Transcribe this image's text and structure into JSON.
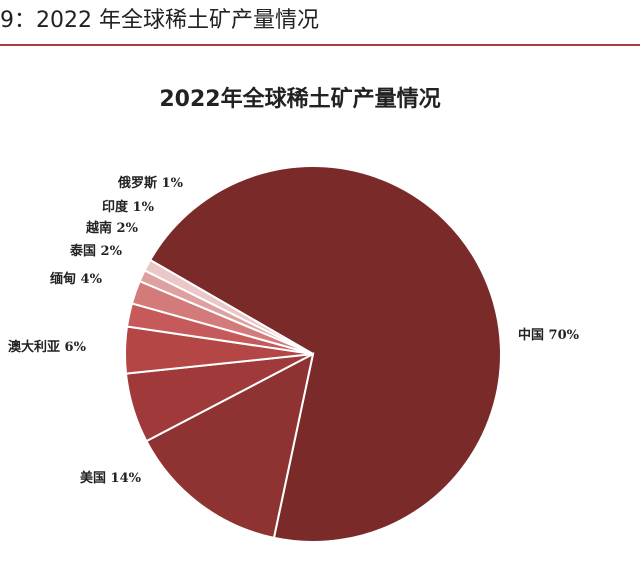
{
  "figure": {
    "caption": "9：2022 年全球稀土矿产量情况",
    "accent_color": "#b23a3a"
  },
  "chart_data": {
    "type": "pie",
    "title": "2022年全球稀土矿产量情况",
    "categories": [
      "中国",
      "美国",
      "澳大利亚",
      "缅甸",
      "泰国",
      "越南",
      "印度",
      "俄罗斯"
    ],
    "values": [
      70,
      14,
      6,
      4,
      2,
      2,
      1,
      1
    ],
    "labels": [
      "中国 70%",
      "美国 14%",
      "澳大利亚 6%",
      "缅甸 4%",
      "泰国 2%",
      "越南 2%",
      "印度 1%",
      "俄罗斯 1%"
    ],
    "colors": [
      "#7b2a2a",
      "#8e3232",
      "#a03a3a",
      "#b54646",
      "#c65a5a",
      "#d37a7a",
      "#dea0a0",
      "#ebc8c8"
    ],
    "legend": "none"
  }
}
